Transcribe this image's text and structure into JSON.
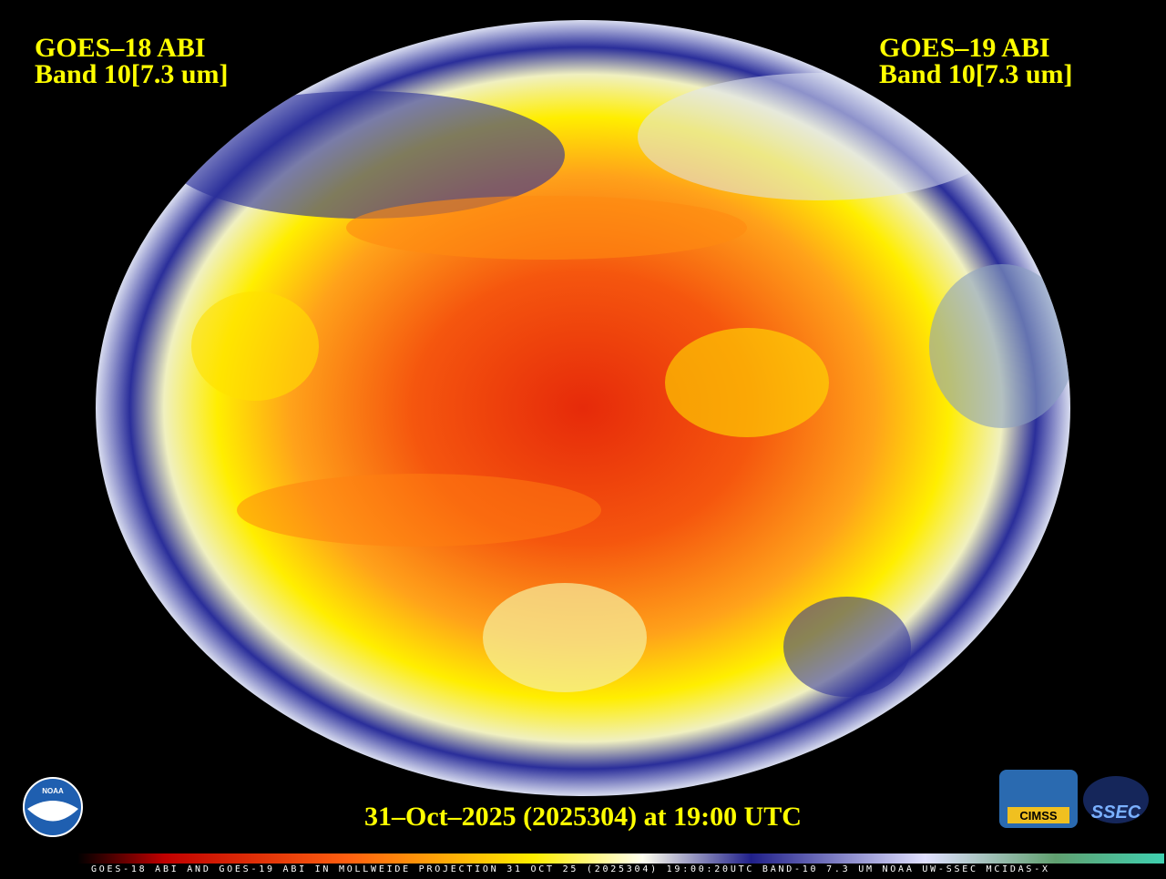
{
  "left_label": {
    "line1": "GOES–18 ABI",
    "line2": "Band 10[7.3 um]"
  },
  "right_label": {
    "line1": "GOES–19 ABI",
    "line2": "Band 10[7.3 um]"
  },
  "timestamp": "31–Oct–2025 (2025304) at 19:00 UTC",
  "footer": "GOES-18 ABI AND GOES-19 ABI IN MOLLWEIDE PROJECTION 31 OCT 25 (2025304) 19:00:20UTC BAND-10 7.3 UM NOAA UW-SSEC MCIDAS-X",
  "logos": {
    "noaa": "NOAA",
    "cimss": "CIMSS",
    "ssec": "SSEC"
  }
}
